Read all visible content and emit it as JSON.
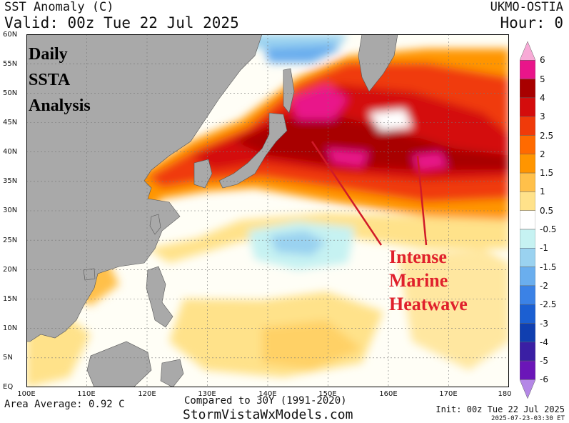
{
  "header": {
    "title": "SST Anomaly (C)",
    "valid": "Valid: 00z Tue 22 Jul 2025",
    "source": "UKMO-OSTIA",
    "hour": "Hour: 0"
  },
  "map": {
    "lat_labels": [
      "60N",
      "55N",
      "50N",
      "45N",
      "40N",
      "35N",
      "30N",
      "25N",
      "20N",
      "15N",
      "10N",
      "5N",
      "EQ"
    ],
    "lon_labels": [
      "100E",
      "110E",
      "120E",
      "130E",
      "140E",
      "150E",
      "160E",
      "170E",
      "180"
    ],
    "lon_range": [
      100,
      180
    ],
    "lat_range": [
      0,
      60
    ],
    "overlay_title_lines": [
      "Daily",
      "SSTA",
      "Analysis"
    ],
    "annotation_lines": [
      "Intense",
      "Marine",
      "Heatwave"
    ],
    "land_color": "#a9a9a9",
    "annotation_color": "#e0202c"
  },
  "colorbar": {
    "labels": [
      "6",
      "5",
      "4",
      "3",
      "2.5",
      "2",
      "1.5",
      "1",
      "0.5",
      "-0.5",
      "-1",
      "-1.5",
      "-2",
      "-2.5",
      "-3",
      "-4",
      "-5",
      "-6"
    ],
    "colors": [
      "#f7aad6",
      "#e9158a",
      "#a80000",
      "#d40c0c",
      "#f03a0a",
      "#ff6a00",
      "#ff9500",
      "#ffc04a",
      "#ffe28a",
      "#ffffff",
      "#c6f2f2",
      "#9ad2f0",
      "#6aaeee",
      "#3b82e6",
      "#1b5fd2",
      "#103fb0",
      "#3a1fa4",
      "#6b16b8",
      "#b487e6"
    ]
  },
  "footer": {
    "area_average": "Area Average: 0.92 C",
    "compared": "Compared to 30Y (1991-2020)",
    "site": "StormVistaWxModels.com",
    "init": "Init: 00z Tue 22 Jul 2025",
    "timestamp": "2025-07-23-03:30 ET"
  }
}
